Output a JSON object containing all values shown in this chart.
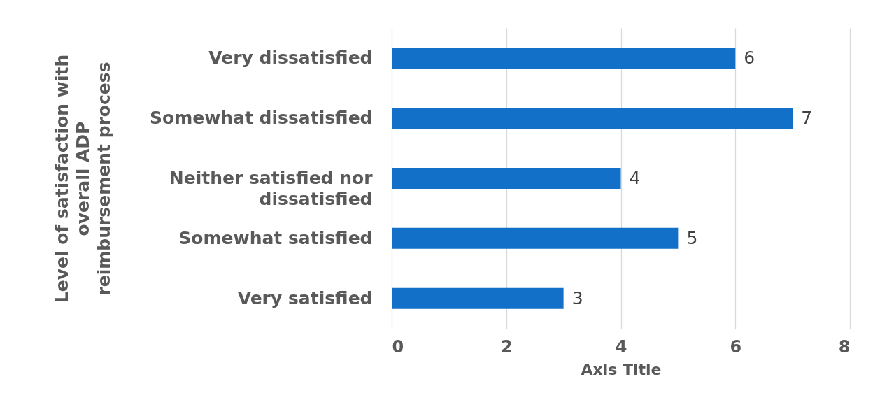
{
  "chart_data": {
    "type": "bar",
    "orientation": "horizontal",
    "xlabel": "Axis Title",
    "ylabel": "Level of satisfaction with\noverall ADP\nreimbursement process",
    "categories": [
      "Very dissatisfied",
      "Somewhat dissatisfied",
      "Neither satisfied nor dissatisfied",
      "Somewhat satisfied",
      "Very satisfied"
    ],
    "values": [
      6,
      7,
      4,
      5,
      3
    ],
    "color": "#1270c8",
    "xlim": [
      0,
      8
    ],
    "xticks": [
      0,
      2,
      4,
      6,
      8
    ],
    "grid": "x",
    "data_labels": true
  }
}
